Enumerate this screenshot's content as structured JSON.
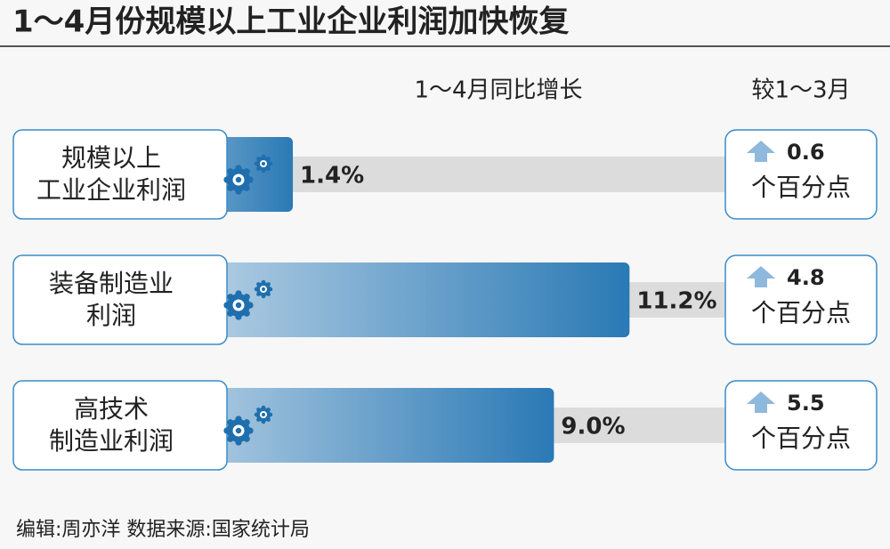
{
  "chart_data": {
    "type": "bar",
    "title": "1～4月份规模以上工业企业利润加快恢复",
    "value_header": "1～4月同比增长",
    "change_header": "较1～3月",
    "categories": [
      "规模以上\n工业企业利润",
      "装备制造业\n利润",
      "高技术\n制造业利润"
    ],
    "values": [
      1.4,
      11.2,
      9.0
    ],
    "value_labels": [
      "1.4%",
      "11.2%",
      "9.0%"
    ],
    "changes": [
      0.6,
      4.8,
      5.5
    ],
    "change_unit": "个百分点",
    "color": "#2a79b5",
    "footer": "编辑:周亦洋  数据来源:国家统计局"
  }
}
